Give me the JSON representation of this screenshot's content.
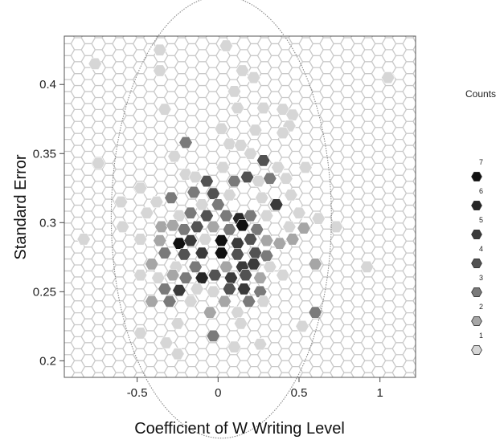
{
  "chart_data": {
    "type": "hexbin",
    "xlabel": "Coefficient of W Writing Level",
    "ylabel": "Standard Error",
    "xlim": [
      -0.95,
      1.22
    ],
    "ylim": [
      0.188,
      0.435
    ],
    "x_ticks": [
      {
        "value": -0.5,
        "label": "-0.5"
      },
      {
        "value": 0,
        "label": "0"
      },
      {
        "value": 0.5,
        "label": "0.5"
      },
      {
        "value": 1,
        "label": "1"
      }
    ],
    "y_ticks": [
      {
        "value": 0.2,
        "label": "0.2"
      },
      {
        "value": 0.25,
        "label": "0.25"
      },
      {
        "value": 0.3,
        "label": "0.3"
      },
      {
        "value": 0.35,
        "label": "0.35"
      },
      {
        "value": 0.4,
        "label": "0.4"
      }
    ],
    "grid": "hexagonal",
    "ellipse": {
      "center": [
        0.02,
        0.304
      ],
      "x_radius": 0.68,
      "y_radius": 0.16,
      "color": "#888888"
    },
    "legend": {
      "title": "Counts",
      "placement": "right",
      "levels": [
        {
          "label": "1",
          "count": 1,
          "color": "#d6d6d6"
        },
        {
          "label": "2",
          "count": 2,
          "color": "#a6a6a6"
        },
        {
          "label": "3",
          "count": 3,
          "color": "#7a7a7a"
        },
        {
          "label": "4",
          "count": 4,
          "color": "#525252"
        },
        {
          "label": "5",
          "count": 5,
          "color": "#3a3a3a"
        },
        {
          "label": "6",
          "count": 6,
          "color": "#262626"
        },
        {
          "label": "7",
          "count": 7,
          "color": "#111111"
        }
      ]
    },
    "cells": [
      {
        "x": -0.76,
        "y": 0.415,
        "count": 1
      },
      {
        "x": -0.36,
        "y": 0.425,
        "count": 1
      },
      {
        "x": -0.36,
        "y": 0.41,
        "count": 1
      },
      {
        "x": 0.05,
        "y": 0.428,
        "count": 1
      },
      {
        "x": 0.15,
        "y": 0.41,
        "count": 1
      },
      {
        "x": 0.22,
        "y": 0.405,
        "count": 1
      },
      {
        "x": 0.1,
        "y": 0.395,
        "count": 1
      },
      {
        "x": 1.05,
        "y": 0.405,
        "count": 1
      },
      {
        "x": -0.33,
        "y": 0.382,
        "count": 1
      },
      {
        "x": 0.12,
        "y": 0.383,
        "count": 1
      },
      {
        "x": 0.28,
        "y": 0.383,
        "count": 1
      },
      {
        "x": 0.4,
        "y": 0.382,
        "count": 1
      },
      {
        "x": 0.46,
        "y": 0.378,
        "count": 1
      },
      {
        "x": 0.44,
        "y": 0.37,
        "count": 1
      },
      {
        "x": 0.02,
        "y": 0.368,
        "count": 1
      },
      {
        "x": 0.23,
        "y": 0.367,
        "count": 1
      },
      {
        "x": 0.4,
        "y": 0.365,
        "count": 1
      },
      {
        "x": -0.2,
        "y": 0.358,
        "count": 3
      },
      {
        "x": 0.07,
        "y": 0.357,
        "count": 1
      },
      {
        "x": 0.14,
        "y": 0.356,
        "count": 1
      },
      {
        "x": 0.2,
        "y": 0.35,
        "count": 1
      },
      {
        "x": -0.27,
        "y": 0.348,
        "count": 1
      },
      {
        "x": 0.28,
        "y": 0.345,
        "count": 4
      },
      {
        "x": -0.74,
        "y": 0.343,
        "count": 1
      },
      {
        "x": 0.03,
        "y": 0.34,
        "count": 1
      },
      {
        "x": 0.37,
        "y": 0.34,
        "count": 1
      },
      {
        "x": 0.54,
        "y": 0.34,
        "count": 1
      },
      {
        "x": -0.2,
        "y": 0.335,
        "count": 1
      },
      {
        "x": -0.14,
        "y": 0.333,
        "count": 1
      },
      {
        "x": -0.07,
        "y": 0.33,
        "count": 4
      },
      {
        "x": 0.1,
        "y": 0.33,
        "count": 3
      },
      {
        "x": 0.18,
        "y": 0.333,
        "count": 4
      },
      {
        "x": 0.25,
        "y": 0.33,
        "count": 1
      },
      {
        "x": 0.32,
        "y": 0.332,
        "count": 3
      },
      {
        "x": 0.42,
        "y": 0.332,
        "count": 1
      },
      {
        "x": -0.48,
        "y": 0.325,
        "count": 1
      },
      {
        "x": -0.15,
        "y": 0.322,
        "count": 3
      },
      {
        "x": -0.03,
        "y": 0.321,
        "count": 4
      },
      {
        "x": 0.07,
        "y": 0.32,
        "count": 1
      },
      {
        "x": -0.29,
        "y": 0.318,
        "count": 3
      },
      {
        "x": -0.38,
        "y": 0.315,
        "count": 1
      },
      {
        "x": -0.1,
        "y": 0.313,
        "count": 1
      },
      {
        "x": 0.0,
        "y": 0.313,
        "count": 3
      },
      {
        "x": 0.27,
        "y": 0.318,
        "count": 1
      },
      {
        "x": 0.36,
        "y": 0.313,
        "count": 5
      },
      {
        "x": 0.45,
        "y": 0.32,
        "count": 1
      },
      {
        "x": -0.6,
        "y": 0.315,
        "count": 1
      },
      {
        "x": -0.44,
        "y": 0.307,
        "count": 1
      },
      {
        "x": -0.24,
        "y": 0.305,
        "count": 1
      },
      {
        "x": -0.17,
        "y": 0.307,
        "count": 3
      },
      {
        "x": -0.07,
        "y": 0.305,
        "count": 4
      },
      {
        "x": 0.05,
        "y": 0.305,
        "count": 3
      },
      {
        "x": 0.13,
        "y": 0.303,
        "count": 6
      },
      {
        "x": 0.2,
        "y": 0.305,
        "count": 3
      },
      {
        "x": 0.3,
        "y": 0.305,
        "count": 1
      },
      {
        "x": 0.5,
        "y": 0.307,
        "count": 1
      },
      {
        "x": 0.62,
        "y": 0.303,
        "count": 1
      },
      {
        "x": -0.59,
        "y": 0.297,
        "count": 1
      },
      {
        "x": -0.35,
        "y": 0.297,
        "count": 2
      },
      {
        "x": -0.28,
        "y": 0.298,
        "count": 2
      },
      {
        "x": -0.21,
        "y": 0.295,
        "count": 3
      },
      {
        "x": -0.13,
        "y": 0.297,
        "count": 4
      },
      {
        "x": -0.03,
        "y": 0.297,
        "count": 2
      },
      {
        "x": 0.07,
        "y": 0.295,
        "count": 3
      },
      {
        "x": 0.15,
        "y": 0.298,
        "count": 7
      },
      {
        "x": 0.24,
        "y": 0.295,
        "count": 3
      },
      {
        "x": 0.44,
        "y": 0.297,
        "count": 1
      },
      {
        "x": 0.53,
        "y": 0.296,
        "count": 2
      },
      {
        "x": 0.73,
        "y": 0.297,
        "count": 1
      },
      {
        "x": -0.83,
        "y": 0.288,
        "count": 1
      },
      {
        "x": -0.48,
        "y": 0.288,
        "count": 1
      },
      {
        "x": -0.36,
        "y": 0.287,
        "count": 2
      },
      {
        "x": -0.24,
        "y": 0.285,
        "count": 7
      },
      {
        "x": -0.17,
        "y": 0.287,
        "count": 5
      },
      {
        "x": -0.08,
        "y": 0.288,
        "count": 1
      },
      {
        "x": 0.02,
        "y": 0.287,
        "count": 7
      },
      {
        "x": 0.12,
        "y": 0.285,
        "count": 5
      },
      {
        "x": 0.2,
        "y": 0.288,
        "count": 4
      },
      {
        "x": 0.3,
        "y": 0.287,
        "count": 2
      },
      {
        "x": 0.38,
        "y": 0.285,
        "count": 2
      },
      {
        "x": 0.46,
        "y": 0.288,
        "count": 2
      },
      {
        "x": -0.33,
        "y": 0.278,
        "count": 3
      },
      {
        "x": -0.21,
        "y": 0.277,
        "count": 4
      },
      {
        "x": -0.1,
        "y": 0.278,
        "count": 5
      },
      {
        "x": 0.02,
        "y": 0.278,
        "count": 7
      },
      {
        "x": 0.12,
        "y": 0.277,
        "count": 4
      },
      {
        "x": 0.23,
        "y": 0.278,
        "count": 4
      },
      {
        "x": 0.3,
        "y": 0.276,
        "count": 3
      },
      {
        "x": -0.41,
        "y": 0.27,
        "count": 2
      },
      {
        "x": -0.26,
        "y": 0.268,
        "count": 1
      },
      {
        "x": -0.14,
        "y": 0.268,
        "count": 3
      },
      {
        "x": 0.05,
        "y": 0.268,
        "count": 2
      },
      {
        "x": 0.15,
        "y": 0.268,
        "count": 5
      },
      {
        "x": 0.22,
        "y": 0.27,
        "count": 5
      },
      {
        "x": 0.32,
        "y": 0.268,
        "count": 1
      },
      {
        "x": 0.6,
        "y": 0.27,
        "count": 2
      },
      {
        "x": 0.92,
        "y": 0.268,
        "count": 1
      },
      {
        "x": -0.48,
        "y": 0.262,
        "count": 1
      },
      {
        "x": -0.37,
        "y": 0.26,
        "count": 1
      },
      {
        "x": -0.28,
        "y": 0.262,
        "count": 2
      },
      {
        "x": -0.2,
        "y": 0.26,
        "count": 3
      },
      {
        "x": -0.1,
        "y": 0.26,
        "count": 6
      },
      {
        "x": -0.02,
        "y": 0.262,
        "count": 4
      },
      {
        "x": 0.08,
        "y": 0.26,
        "count": 5
      },
      {
        "x": 0.17,
        "y": 0.262,
        "count": 4
      },
      {
        "x": 0.26,
        "y": 0.26,
        "count": 2
      },
      {
        "x": 0.4,
        "y": 0.262,
        "count": 1
      },
      {
        "x": -0.33,
        "y": 0.252,
        "count": 3
      },
      {
        "x": -0.24,
        "y": 0.251,
        "count": 5
      },
      {
        "x": -0.13,
        "y": 0.252,
        "count": 1
      },
      {
        "x": -0.03,
        "y": 0.25,
        "count": 1
      },
      {
        "x": 0.07,
        "y": 0.252,
        "count": 4
      },
      {
        "x": 0.16,
        "y": 0.252,
        "count": 5
      },
      {
        "x": 0.26,
        "y": 0.25,
        "count": 3
      },
      {
        "x": -0.41,
        "y": 0.243,
        "count": 2
      },
      {
        "x": -0.3,
        "y": 0.243,
        "count": 3
      },
      {
        "x": -0.17,
        "y": 0.243,
        "count": 1
      },
      {
        "x": 0.04,
        "y": 0.243,
        "count": 2
      },
      {
        "x": 0.19,
        "y": 0.243,
        "count": 3
      },
      {
        "x": 0.28,
        "y": 0.243,
        "count": 1
      },
      {
        "x": -0.05,
        "y": 0.235,
        "count": 2
      },
      {
        "x": 0.12,
        "y": 0.235,
        "count": 1
      },
      {
        "x": 0.6,
        "y": 0.235,
        "count": 3
      },
      {
        "x": -0.25,
        "y": 0.227,
        "count": 1
      },
      {
        "x": 0.14,
        "y": 0.227,
        "count": 1
      },
      {
        "x": 0.52,
        "y": 0.225,
        "count": 1
      },
      {
        "x": -0.48,
        "y": 0.22,
        "count": 1
      },
      {
        "x": -0.32,
        "y": 0.213,
        "count": 1
      },
      {
        "x": -0.03,
        "y": 0.218,
        "count": 3
      },
      {
        "x": 0.1,
        "y": 0.21,
        "count": 1
      },
      {
        "x": -0.25,
        "y": 0.205,
        "count": 1
      },
      {
        "x": 0.26,
        "y": 0.212,
        "count": 1
      }
    ]
  }
}
